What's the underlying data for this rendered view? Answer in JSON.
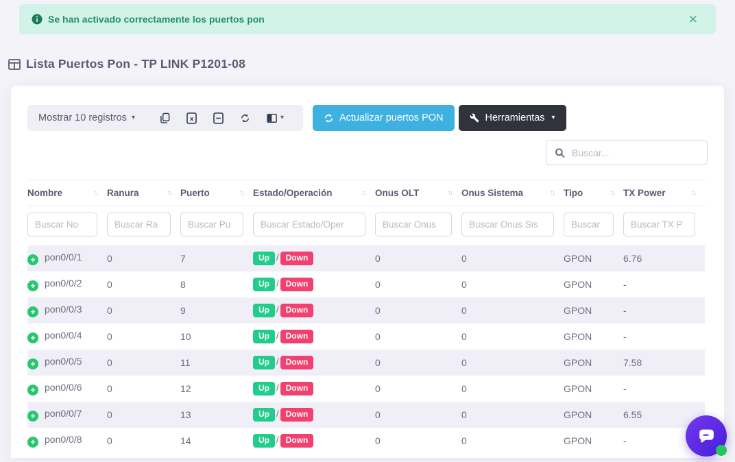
{
  "alert": {
    "message": "Se han activado correctamente los puertos pon"
  },
  "page": {
    "title": "Lista Puertos Pon - TP LINK P1201-08"
  },
  "toolbar": {
    "records_label": "Mostrar 10 registros",
    "update_button": "Actualizar puertos PON",
    "tools_button": "Herramientas"
  },
  "search": {
    "placeholder": "Buscar..."
  },
  "icons": {
    "close": "✕",
    "caret_down": "▾",
    "sort": "↑↓",
    "plus": "+"
  },
  "badges": {
    "up": "Up",
    "down": "Down",
    "separator": "/"
  },
  "table": {
    "columns": [
      {
        "key": "nombre",
        "label": "Nombre"
      },
      {
        "key": "ranura",
        "label": "Ranura"
      },
      {
        "key": "puerto",
        "label": "Puerto"
      },
      {
        "key": "estado_operacion",
        "label": "Estado/Operación"
      },
      {
        "key": "onus_olt",
        "label": "Onus OLT"
      },
      {
        "key": "onus_sistema",
        "label": "Onus Sistema"
      },
      {
        "key": "tipo",
        "label": "Tipo"
      },
      {
        "key": "tx_power",
        "label": "TX Power"
      }
    ],
    "filters": [
      "Buscar No",
      "Buscar Ra",
      "Buscar Pu",
      "Buscar Estado/Oper",
      "Buscar Onus",
      "Buscar Onus Sis",
      "Buscar",
      "Buscar TX P"
    ],
    "rows": [
      {
        "nombre": "pon0/0/1",
        "ranura": "0",
        "puerto": "7",
        "estado_operacion": "Up / Down",
        "onus_olt": "0",
        "onus_sistema": "0",
        "tipo": "GPON",
        "tx_power": "6.76"
      },
      {
        "nombre": "pon0/0/2",
        "ranura": "0",
        "puerto": "8",
        "estado_operacion": "Up / Down",
        "onus_olt": "0",
        "onus_sistema": "0",
        "tipo": "GPON",
        "tx_power": "-"
      },
      {
        "nombre": "pon0/0/3",
        "ranura": "0",
        "puerto": "9",
        "estado_operacion": "Up / Down",
        "onus_olt": "0",
        "onus_sistema": "0",
        "tipo": "GPON",
        "tx_power": "-"
      },
      {
        "nombre": "pon0/0/4",
        "ranura": "0",
        "puerto": "10",
        "estado_operacion": "Up / Down",
        "onus_olt": "0",
        "onus_sistema": "0",
        "tipo": "GPON",
        "tx_power": "-"
      },
      {
        "nombre": "pon0/0/5",
        "ranura": "0",
        "puerto": "11",
        "estado_operacion": "Up / Down",
        "onus_olt": "0",
        "onus_sistema": "0",
        "tipo": "GPON",
        "tx_power": "7.58"
      },
      {
        "nombre": "pon0/0/6",
        "ranura": "0",
        "puerto": "12",
        "estado_operacion": "Up / Down",
        "onus_olt": "0",
        "onus_sistema": "0",
        "tipo": "GPON",
        "tx_power": "-"
      },
      {
        "nombre": "pon0/0/7",
        "ranura": "0",
        "puerto": "13",
        "estado_operacion": "Up / Down",
        "onus_olt": "0",
        "onus_sistema": "0",
        "tipo": "GPON",
        "tx_power": "6.55"
      },
      {
        "nombre": "pon0/0/8",
        "ranura": "0",
        "puerto": "14",
        "estado_operacion": "Up / Down",
        "onus_olt": "0",
        "onus_sistema": "0",
        "tipo": "GPON",
        "tx_power": "-"
      }
    ]
  },
  "colors": {
    "alert_bg": "#d2f4e8",
    "alert_text": "#238f6f",
    "accent_blue": "#3eb1e0",
    "dark_button": "#30323c",
    "badge_up": "#22cd8c",
    "badge_down": "#f2416e",
    "plus_green": "#28c76f",
    "row_stripe": "#f0eff8",
    "chat_purple": "#4a20dd",
    "chat_status_green": "#22c55e"
  }
}
